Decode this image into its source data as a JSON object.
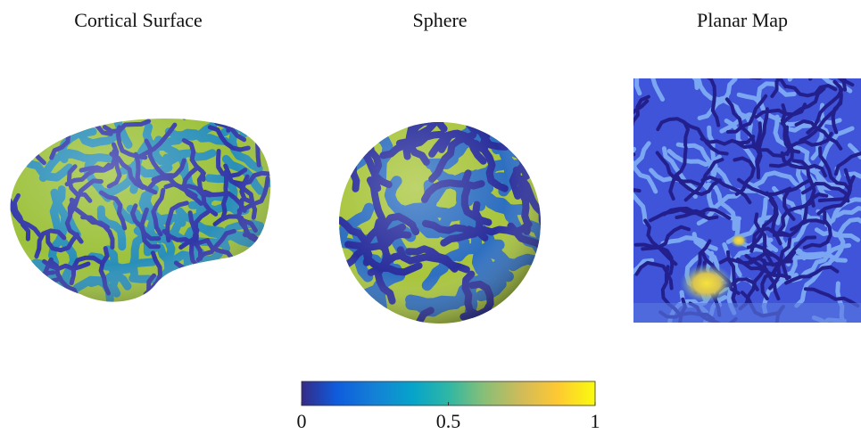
{
  "panels": [
    {
      "title": "Cortical Surface"
    },
    {
      "title": "Sphere"
    },
    {
      "title": "Planar Map"
    }
  ],
  "colorbar": {
    "lim": [
      0,
      1
    ],
    "ticks": [
      0,
      0.5,
      1
    ]
  }
}
